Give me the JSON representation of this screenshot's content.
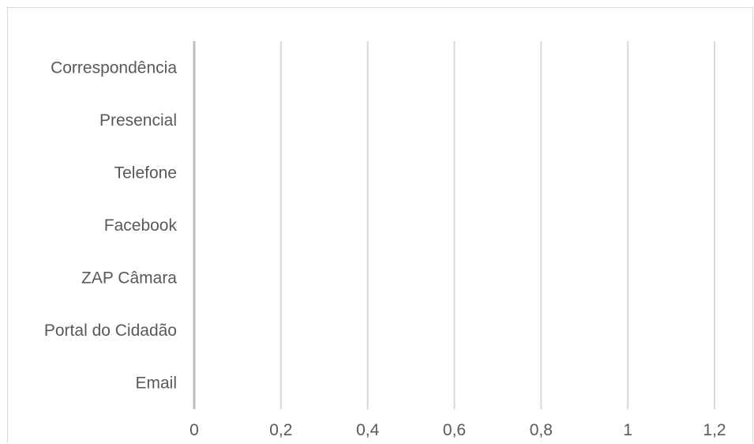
{
  "chart_data": {
    "type": "bar",
    "orientation": "horizontal",
    "categories": [
      "Email",
      "Portal do Cidadão",
      "ZAP Câmara",
      "Facebook",
      "Telefone",
      "Presencial",
      "Correspondência"
    ],
    "values": [
      0,
      0,
      0,
      0,
      0,
      0,
      0
    ],
    "x_ticks": [
      "0",
      "0,2",
      "0,4",
      "0,6",
      "0,8",
      "1",
      "1,2"
    ],
    "xlim": [
      0,
      1.2
    ],
    "grid": true,
    "colors": {
      "gridline": "#d9d9d9",
      "axis": "#bfbfbf",
      "label": "#595959",
      "bar": "#4472c4"
    }
  }
}
